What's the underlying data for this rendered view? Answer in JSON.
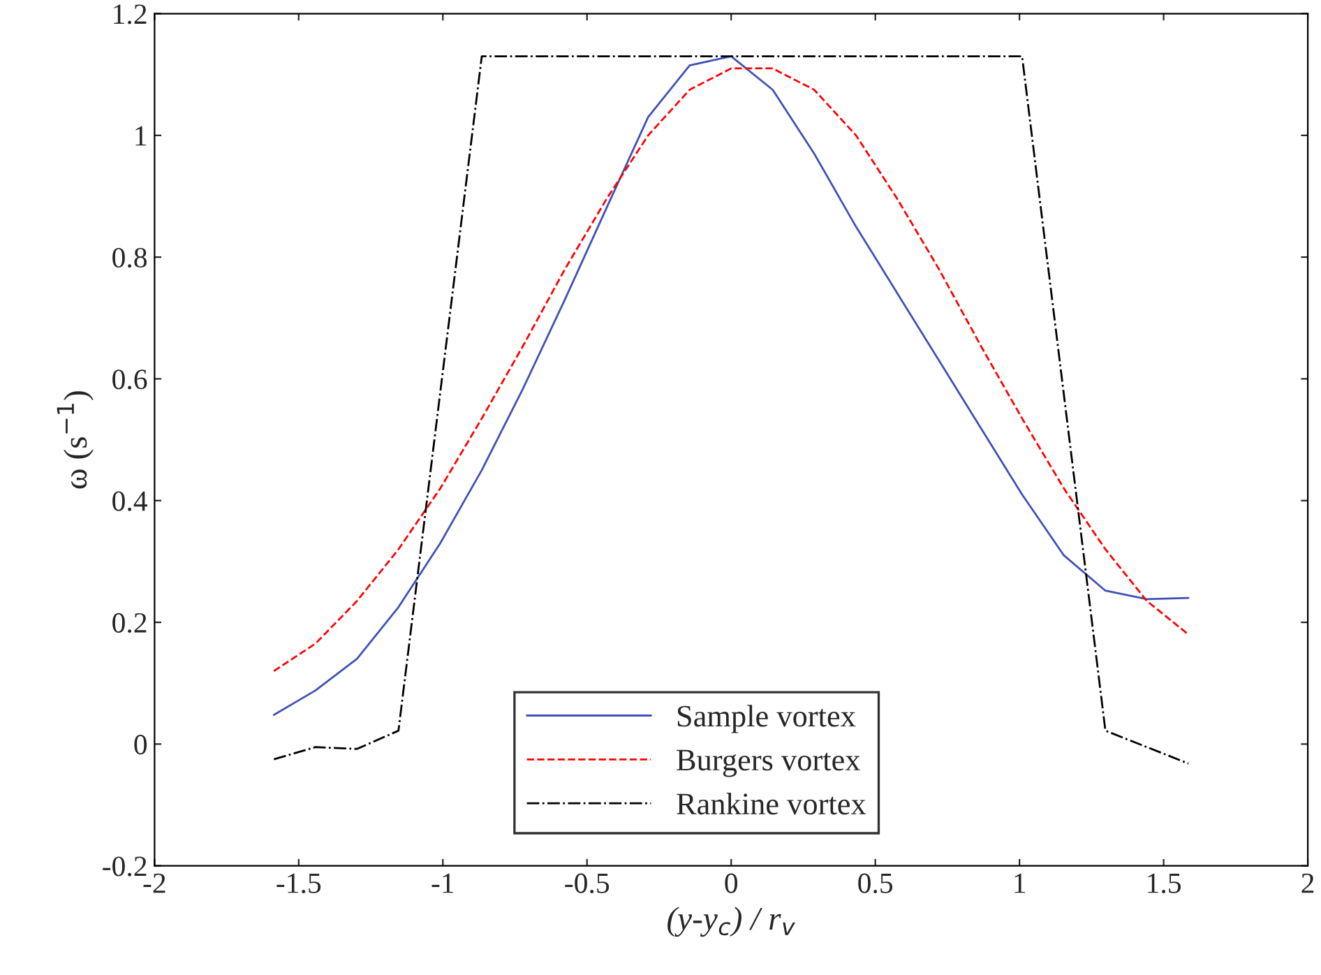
{
  "chart_data": {
    "type": "line",
    "xlabel": "(y-y$_{c}$) / r$_{v}$",
    "ylabel": "ω (s$^{−1}$)",
    "xlim": [
      -2,
      2
    ],
    "xticks": [
      -2,
      -1.5,
      -1,
      -0.5,
      0,
      0.5,
      1,
      1.5,
      2
    ],
    "ylim": [
      -0.2,
      1.2
    ],
    "yticks": [
      -0.2,
      0,
      0.2,
      0.4,
      0.6,
      0.8,
      1,
      1.2
    ],
    "grid": false,
    "legend": "bottom",
    "marker": "none",
    "series": [
      {
        "name": "Sample vortex",
        "color": "#3f51b5",
        "line_style": "solid",
        "x": [
          -1.586,
          -1.442,
          -1.298,
          -1.154,
          -1.009,
          -0.865,
          -0.721,
          -0.577,
          -0.433,
          -0.288,
          -0.144,
          0,
          0.144,
          0.288,
          0.433,
          0.577,
          0.721,
          0.865,
          1.009,
          1.154,
          1.298,
          1.442,
          1.586
        ],
        "values": [
          0.048,
          0.088,
          0.14,
          0.225,
          0.33,
          0.45,
          0.585,
          0.73,
          0.88,
          1.03,
          1.115,
          1.13,
          1.075,
          0.97,
          0.85,
          0.74,
          0.63,
          0.52,
          0.41,
          0.31,
          0.252,
          0.238,
          0.24
        ]
      },
      {
        "name": "Burgers vortex",
        "color": "#ff0000",
        "line_style": "dashed",
        "x": [
          -1.586,
          -1.442,
          -1.298,
          -1.154,
          -1.009,
          -0.865,
          -0.721,
          -0.577,
          -0.433,
          -0.288,
          -0.144,
          0,
          0.144,
          0.288,
          0.433,
          0.577,
          0.721,
          0.865,
          1.009,
          1.154,
          1.298,
          1.442,
          1.586
        ],
        "values": [
          0.12,
          0.165,
          0.235,
          0.32,
          0.42,
          0.535,
          0.655,
          0.78,
          0.895,
          1.0,
          1.075,
          1.11,
          1.11,
          1.075,
          1.0,
          0.895,
          0.78,
          0.655,
          0.535,
          0.42,
          0.32,
          0.235,
          0.18
        ]
      },
      {
        "name": "Rankine vortex",
        "color": "#000000",
        "line_style": "dashdot",
        "x": [
          -1.586,
          -1.442,
          -1.298,
          -1.154,
          -0.865,
          1.009,
          1.298,
          1.442,
          1.586
        ],
        "values": [
          -0.025,
          -0.005,
          -0.008,
          0.022,
          1.13,
          1.13,
          0.022,
          -0.005,
          -0.032
        ]
      }
    ]
  }
}
